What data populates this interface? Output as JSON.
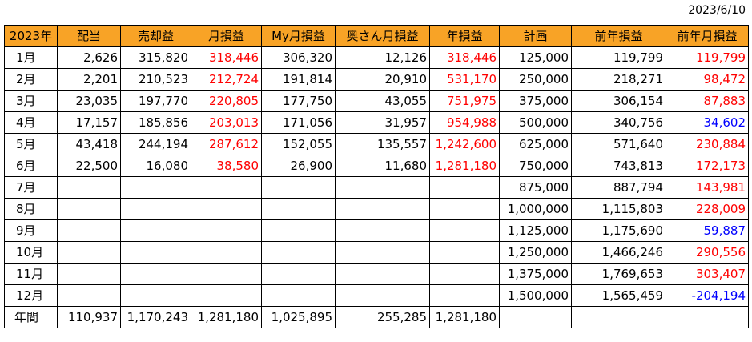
{
  "date": "2023/6/10",
  "headers": [
    "2023年",
    "配当",
    "売却益",
    "月損益",
    "My月損益",
    "奥さん月損益",
    "年損益",
    "計画",
    "前年損益",
    "前年月損益"
  ],
  "rows": [
    {
      "month": "1月",
      "dividend": "2,626",
      "sale": "315,820",
      "monthly": "318,446",
      "my": "306,320",
      "wife": "12,126",
      "annual": "318,446",
      "plan": "125,000",
      "prev_annual": "119,799",
      "prev_monthly": "119,799"
    },
    {
      "month": "2月",
      "dividend": "2,201",
      "sale": "210,523",
      "monthly": "212,724",
      "my": "191,814",
      "wife": "20,910",
      "annual": "531,170",
      "plan": "250,000",
      "prev_annual": "218,271",
      "prev_monthly": "98,472"
    },
    {
      "month": "3月",
      "dividend": "23,035",
      "sale": "197,770",
      "monthly": "220,805",
      "my": "177,750",
      "wife": "43,055",
      "annual": "751,975",
      "plan": "375,000",
      "prev_annual": "306,154",
      "prev_monthly": "87,883"
    },
    {
      "month": "4月",
      "dividend": "17,157",
      "sale": "185,856",
      "monthly": "203,013",
      "my": "171,056",
      "wife": "31,957",
      "annual": "954,988",
      "plan": "500,000",
      "prev_annual": "340,756",
      "prev_monthly": "34,602"
    },
    {
      "month": "5月",
      "dividend": "43,418",
      "sale": "244,194",
      "monthly": "287,612",
      "my": "152,055",
      "wife": "135,557",
      "annual": "1,242,600",
      "plan": "625,000",
      "prev_annual": "571,640",
      "prev_monthly": "230,884"
    },
    {
      "month": "6月",
      "dividend": "22,500",
      "sale": "16,080",
      "monthly": "38,580",
      "my": "26,900",
      "wife": "11,680",
      "annual": "1,281,180",
      "plan": "750,000",
      "prev_annual": "743,813",
      "prev_monthly": "172,173"
    },
    {
      "month": "7月",
      "dividend": "",
      "sale": "",
      "monthly": "",
      "my": "",
      "wife": "",
      "annual": "",
      "plan": "875,000",
      "prev_annual": "887,794",
      "prev_monthly": "143,981"
    },
    {
      "month": "8月",
      "dividend": "",
      "sale": "",
      "monthly": "",
      "my": "",
      "wife": "",
      "annual": "",
      "plan": "1,000,000",
      "prev_annual": "1,115,803",
      "prev_monthly": "228,009"
    },
    {
      "month": "9月",
      "dividend": "",
      "sale": "",
      "monthly": "",
      "my": "",
      "wife": "",
      "annual": "",
      "plan": "1,125,000",
      "prev_annual": "1,175,690",
      "prev_monthly": "59,887"
    },
    {
      "month": "10月",
      "dividend": "",
      "sale": "",
      "monthly": "",
      "my": "",
      "wife": "",
      "annual": "",
      "plan": "1,250,000",
      "prev_annual": "1,466,246",
      "prev_monthly": "290,556"
    },
    {
      "month": "11月",
      "dividend": "",
      "sale": "",
      "monthly": "",
      "my": "",
      "wife": "",
      "annual": "",
      "plan": "1,375,000",
      "prev_annual": "1,769,653",
      "prev_monthly": "303,407"
    },
    {
      "month": "12月",
      "dividend": "",
      "sale": "",
      "monthly": "",
      "my": "",
      "wife": "",
      "annual": "",
      "plan": "1,500,000",
      "prev_annual": "1,565,459",
      "prev_monthly": "-204,194"
    }
  ],
  "total": {
    "label": "年間",
    "dividend": "110,937",
    "sale": "1,170,243",
    "monthly": "1,281,180",
    "my": "1,025,895",
    "wife": "255,285",
    "annual": "1,281,180",
    "plan": "",
    "prev_annual": "",
    "prev_monthly": ""
  },
  "colors": {
    "header_bg": "#f8a326",
    "positive": "#ff0000",
    "negative": "#0000ff"
  },
  "prev_monthly_color": [
    "red",
    "red",
    "red",
    "blue",
    "red",
    "red",
    "red",
    "red",
    "blue",
    "red",
    "red",
    "blue"
  ]
}
